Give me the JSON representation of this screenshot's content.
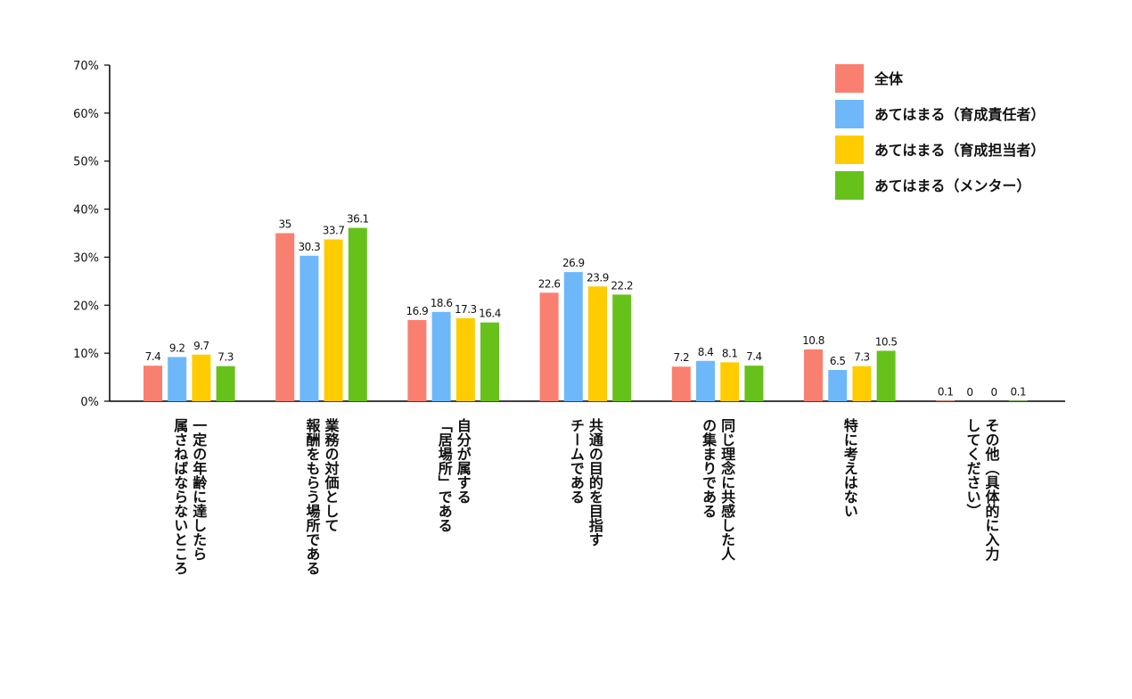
{
  "chart_data": {
    "type": "bar",
    "title": "",
    "xlabel": "",
    "ylabel": "",
    "ylim": [
      0,
      70
    ],
    "yticks": [
      "0%",
      "10%",
      "20%",
      "30%",
      "40%",
      "50%",
      "60%",
      "70%"
    ],
    "legend_position": "top-right",
    "grid": false,
    "categories": [
      [
        "一定の年齢に達したら",
        "属さねばならないところ"
      ],
      [
        "業務の対価として",
        "報酬をもらう場所である"
      ],
      [
        "自分が属する",
        "「居場所」である"
      ],
      [
        "共通の目的を目指す",
        "チームである"
      ],
      [
        "同じ理念に共感した人",
        "の集まりである"
      ],
      [
        "特に考えはない"
      ],
      [
        "その他（具体的に入力",
        "してください）"
      ]
    ],
    "series": [
      {
        "name": "全体",
        "color": "#F98070",
        "values": [
          7.4,
          35.0,
          16.9,
          22.6,
          7.2,
          10.8,
          0.1
        ]
      },
      {
        "name": "あてはまる（育成責任者）",
        "color": "#6EB8FA",
        "values": [
          9.2,
          30.3,
          18.6,
          26.9,
          8.4,
          6.5,
          0.0
        ]
      },
      {
        "name": "あてはまる（育成担当者）",
        "color": "#FFCC00",
        "values": [
          9.7,
          33.7,
          17.3,
          23.9,
          8.1,
          7.3,
          0.0
        ]
      },
      {
        "name": "あてはまる（メンター）",
        "color": "#66C21A",
        "values": [
          7.3,
          36.1,
          16.4,
          22.2,
          7.4,
          10.5,
          0.1
        ]
      }
    ]
  }
}
